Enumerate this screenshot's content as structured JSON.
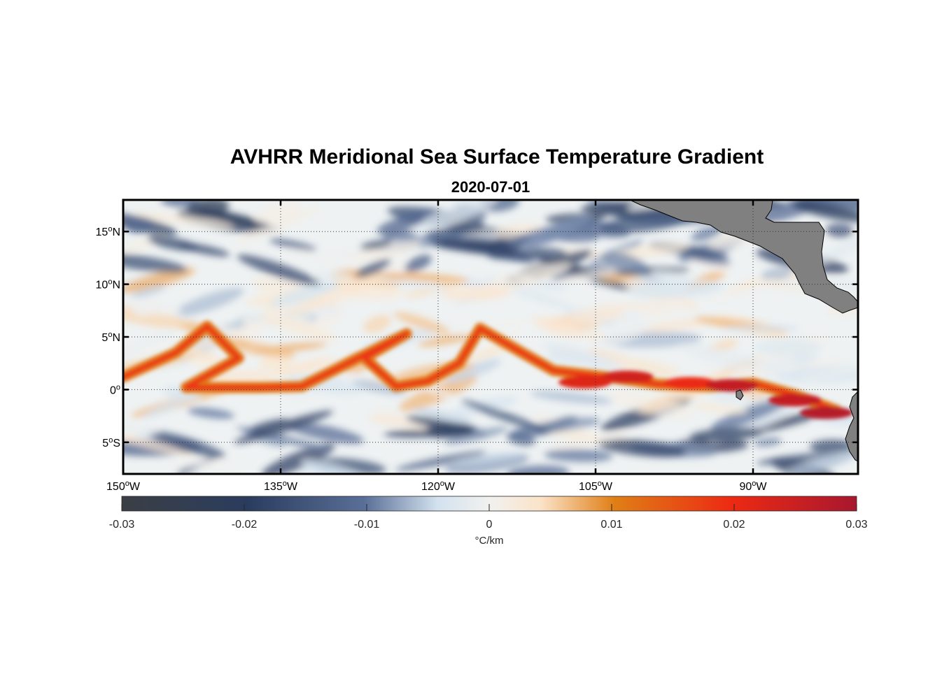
{
  "chart_data": {
    "type": "heatmap",
    "title": "AVHRR Meridional Sea Surface Temperature Gradient",
    "subtitle": "2020-07-01",
    "xlim": [
      -150,
      -80
    ],
    "ylim": [
      -8,
      18
    ],
    "x_ticks": [
      {
        "value": -150,
        "deg": "150",
        "hemi": "W"
      },
      {
        "value": -135,
        "deg": "135",
        "hemi": "W"
      },
      {
        "value": -120,
        "deg": "120",
        "hemi": "W"
      },
      {
        "value": -105,
        "deg": "105",
        "hemi": "W"
      },
      {
        "value": -90,
        "deg": "90",
        "hemi": "W"
      }
    ],
    "y_ticks": [
      {
        "value": 15,
        "deg": "15",
        "hemi": "N"
      },
      {
        "value": 10,
        "deg": "10",
        "hemi": "N"
      },
      {
        "value": 5,
        "deg": "5",
        "hemi": "N"
      },
      {
        "value": 0,
        "deg": "0",
        "hemi": ""
      },
      {
        "value": -5,
        "deg": "5",
        "hemi": "S"
      }
    ],
    "grid": "dotted",
    "colorbar": {
      "min": -0.03,
      "max": 0.03,
      "ticks": [
        -0.03,
        -0.02,
        -0.01,
        0,
        0.01,
        0.02,
        0.03
      ],
      "tick_labels": [
        "-0.03",
        "-0.02",
        "-0.01",
        "0",
        "0.01",
        "0.02",
        "0.03"
      ],
      "label": "°C/km",
      "colors": [
        "#3b3f45",
        "#2a3c5e",
        "#5a6f97",
        "#d3e2ef",
        "#f1f1ef",
        "#fbe3c9",
        "#e07f16",
        "#ec2a13",
        "#a8172f"
      ]
    },
    "features": {
      "equatorial_front": {
        "description": "positive gradient band",
        "points": [
          [
            -150,
            1.2
          ],
          [
            -145,
            3.5
          ],
          [
            -142,
            6.0
          ],
          [
            -139,
            3.0
          ],
          [
            -144,
            0.2
          ],
          [
            -137,
            0.2
          ],
          [
            -133,
            0.3
          ],
          [
            -129,
            2.3
          ],
          [
            -123,
            5.3
          ],
          [
            -127,
            3.0
          ],
          [
            -124,
            0.3
          ],
          [
            -121,
            0.8
          ],
          [
            -118,
            2.5
          ],
          [
            -116,
            5.8
          ],
          [
            -112,
            3.5
          ],
          [
            -109,
            1.8
          ],
          [
            -104,
            1.2
          ],
          [
            -99,
            0.5
          ],
          [
            -94,
            0.3
          ],
          [
            -90,
            0.6
          ],
          [
            -86,
            -0.5
          ],
          [
            -82,
            -2.0
          ]
        ],
        "value": 0.02
      },
      "land_color": "#808080"
    }
  }
}
